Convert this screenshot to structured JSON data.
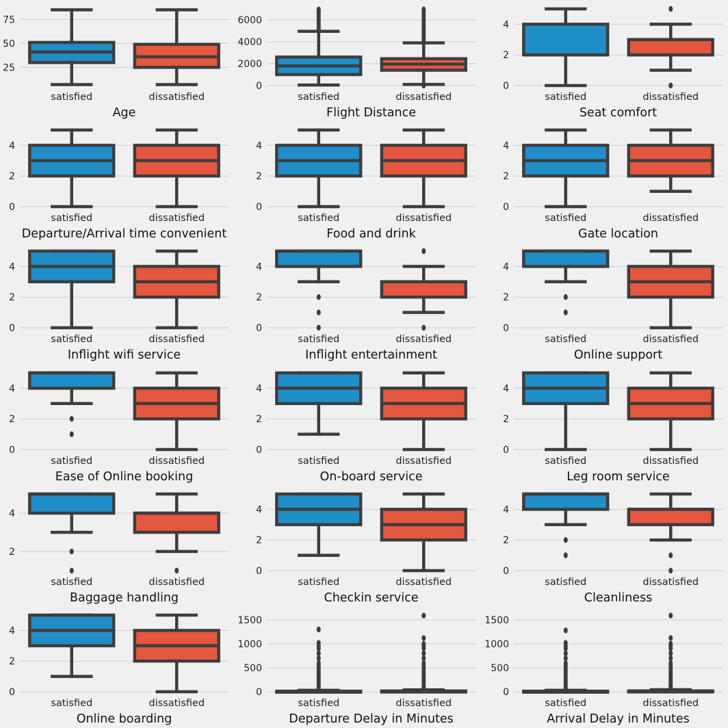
{
  "figure": {
    "background": "#f0f0f0",
    "grid_color": "#cbcbcb",
    "line_color": "#3d3d3d"
  },
  "palette": {
    "satisfied": "#1f8ec9",
    "dissatisfied": "#e5573f"
  },
  "chart_data": [
    {
      "type": "box",
      "xlabel": "Age",
      "categories": [
        "satisfied",
        "dissatisfied"
      ],
      "ylim": [
        6,
        86
      ],
      "yticks": [
        25,
        50,
        75
      ],
      "grid": true,
      "boxes": [
        {
          "name": "satisfied",
          "whisker_low": 7,
          "q1": 30,
          "median": 41,
          "q3": 51,
          "whisker_high": 85,
          "outliers": []
        },
        {
          "name": "dissatisfied",
          "whisker_low": 7,
          "q1": 25,
          "median": 36,
          "q3": 49,
          "whisker_high": 85,
          "outliers": []
        }
      ]
    },
    {
      "type": "box",
      "xlabel": "Flight Distance",
      "categories": [
        "satisfied",
        "dissatisfied"
      ],
      "ylim": [
        0,
        7000
      ],
      "yticks": [
        0,
        2000,
        4000,
        6000
      ],
      "grid": true,
      "boxes": [
        {
          "name": "satisfied",
          "whisker_low": 50,
          "q1": 1000,
          "median": 1800,
          "q3": 2600,
          "whisker_high": 4950,
          "outliers": [
            5100,
            5300,
            5500,
            5700,
            5900,
            6100,
            6300,
            6500,
            6700,
            6850,
            6950
          ]
        },
        {
          "name": "dissatisfied",
          "whisker_low": 100,
          "q1": 1400,
          "median": 1950,
          "q3": 2450,
          "whisker_high": 3900,
          "outliers": [
            0,
            4000,
            4200,
            4400,
            4600,
            4800,
            5000,
            5200,
            5400,
            5600,
            5800,
            6000,
            6200,
            6400,
            6600,
            6800,
            6950
          ]
        }
      ]
    },
    {
      "type": "box",
      "xlabel": "Seat comfort",
      "categories": [
        "satisfied",
        "dissatisfied"
      ],
      "ylim": [
        0,
        5
      ],
      "yticks": [
        0,
        2,
        4
      ],
      "grid": true,
      "boxes": [
        {
          "name": "satisfied",
          "whisker_low": 0,
          "q1": 2,
          "median": 2,
          "q3": 4,
          "whisker_high": 5,
          "outliers": []
        },
        {
          "name": "dissatisfied",
          "whisker_low": 1,
          "q1": 2,
          "median": 2,
          "q3": 3,
          "whisker_high": 4,
          "outliers": [
            0,
            5
          ]
        }
      ]
    },
    {
      "type": "box",
      "xlabel": "Departure/Arrival time convenient",
      "categories": [
        "satisfied",
        "dissatisfied"
      ],
      "ylim": [
        0,
        5
      ],
      "yticks": [
        0,
        2,
        4
      ],
      "grid": true,
      "boxes": [
        {
          "name": "satisfied",
          "whisker_low": 0,
          "q1": 2,
          "median": 3,
          "q3": 4,
          "whisker_high": 5,
          "outliers": []
        },
        {
          "name": "dissatisfied",
          "whisker_low": 0,
          "q1": 2,
          "median": 3,
          "q3": 4,
          "whisker_high": 5,
          "outliers": []
        }
      ]
    },
    {
      "type": "box",
      "xlabel": "Food and drink",
      "categories": [
        "satisfied",
        "dissatisfied"
      ],
      "ylim": [
        0,
        5
      ],
      "yticks": [
        0,
        2,
        4
      ],
      "grid": true,
      "boxes": [
        {
          "name": "satisfied",
          "whisker_low": 0,
          "q1": 2,
          "median": 3,
          "q3": 4,
          "whisker_high": 5,
          "outliers": []
        },
        {
          "name": "dissatisfied",
          "whisker_low": 0,
          "q1": 2,
          "median": 3,
          "q3": 4,
          "whisker_high": 5,
          "outliers": []
        }
      ]
    },
    {
      "type": "box",
      "xlabel": "Gate location",
      "categories": [
        "satisfied",
        "dissatisfied"
      ],
      "ylim": [
        0,
        5
      ],
      "yticks": [
        0,
        2,
        4
      ],
      "grid": true,
      "boxes": [
        {
          "name": "satisfied",
          "whisker_low": 0,
          "q1": 2,
          "median": 3,
          "q3": 4,
          "whisker_high": 5,
          "outliers": []
        },
        {
          "name": "dissatisfied",
          "whisker_low": 1,
          "q1": 2,
          "median": 3,
          "q3": 4,
          "whisker_high": 5,
          "outliers": []
        }
      ]
    },
    {
      "type": "box",
      "xlabel": "Inflight wifi service",
      "categories": [
        "satisfied",
        "dissatisfied"
      ],
      "ylim": [
        0,
        5
      ],
      "yticks": [
        0,
        2,
        4
      ],
      "grid": true,
      "boxes": [
        {
          "name": "satisfied",
          "whisker_low": 0,
          "q1": 3,
          "median": 4,
          "q3": 5,
          "whisker_high": 5,
          "outliers": []
        },
        {
          "name": "dissatisfied",
          "whisker_low": 0,
          "q1": 2,
          "median": 3,
          "q3": 4,
          "whisker_high": 5,
          "outliers": []
        }
      ]
    },
    {
      "type": "box",
      "xlabel": "Inflight entertainment",
      "categories": [
        "satisfied",
        "dissatisfied"
      ],
      "ylim": [
        0,
        5
      ],
      "yticks": [
        0,
        2,
        4
      ],
      "grid": true,
      "boxes": [
        {
          "name": "satisfied",
          "whisker_low": 3,
          "q1": 4,
          "median": 5,
          "q3": 5,
          "whisker_high": 5,
          "outliers": [
            0,
            1,
            2
          ]
        },
        {
          "name": "dissatisfied",
          "whisker_low": 1,
          "q1": 2,
          "median": 3,
          "q3": 3,
          "whisker_high": 4,
          "outliers": [
            0,
            5
          ]
        }
      ]
    },
    {
      "type": "box",
      "xlabel": "Online support",
      "categories": [
        "satisfied",
        "dissatisfied"
      ],
      "ylim": [
        0,
        5
      ],
      "yticks": [
        0,
        2,
        4
      ],
      "grid": true,
      "boxes": [
        {
          "name": "satisfied",
          "whisker_low": 3,
          "q1": 4,
          "median": 5,
          "q3": 5,
          "whisker_high": 5,
          "outliers": [
            1,
            2
          ]
        },
        {
          "name": "dissatisfied",
          "whisker_low": 0,
          "q1": 2,
          "median": 3,
          "q3": 4,
          "whisker_high": 5,
          "outliers": []
        }
      ]
    },
    {
      "type": "box",
      "xlabel": "Ease of Online booking",
      "categories": [
        "satisfied",
        "dissatisfied"
      ],
      "ylim": [
        0,
        5
      ],
      "yticks": [
        0,
        2,
        4
      ],
      "grid": true,
      "boxes": [
        {
          "name": "satisfied",
          "whisker_low": 3,
          "q1": 4,
          "median": 5,
          "q3": 5,
          "whisker_high": 5,
          "outliers": [
            1,
            2
          ]
        },
        {
          "name": "dissatisfied",
          "whisker_low": 0,
          "q1": 2,
          "median": 3,
          "q3": 4,
          "whisker_high": 5,
          "outliers": []
        }
      ]
    },
    {
      "type": "box",
      "xlabel": "On-board service",
      "categories": [
        "satisfied",
        "dissatisfied"
      ],
      "ylim": [
        0,
        5
      ],
      "yticks": [
        0,
        2,
        4
      ],
      "grid": true,
      "boxes": [
        {
          "name": "satisfied",
          "whisker_low": 1,
          "q1": 3,
          "median": 4,
          "q3": 5,
          "whisker_high": 5,
          "outliers": []
        },
        {
          "name": "dissatisfied",
          "whisker_low": 0,
          "q1": 2,
          "median": 3,
          "q3": 4,
          "whisker_high": 5,
          "outliers": []
        }
      ]
    },
    {
      "type": "box",
      "xlabel": "Leg room service",
      "categories": [
        "satisfied",
        "dissatisfied"
      ],
      "ylim": [
        0,
        5
      ],
      "yticks": [
        0,
        2,
        4
      ],
      "grid": true,
      "boxes": [
        {
          "name": "satisfied",
          "whisker_low": 0,
          "q1": 3,
          "median": 4,
          "q3": 5,
          "whisker_high": 5,
          "outliers": []
        },
        {
          "name": "dissatisfied",
          "whisker_low": 0,
          "q1": 2,
          "median": 3,
          "q3": 4,
          "whisker_high": 5,
          "outliers": []
        }
      ]
    },
    {
      "type": "box",
      "xlabel": "Baggage handling",
      "categories": [
        "satisfied",
        "dissatisfied"
      ],
      "ylim": [
        1,
        5
      ],
      "yticks": [
        2,
        4
      ],
      "grid": true,
      "boxes": [
        {
          "name": "satisfied",
          "whisker_low": 3,
          "q1": 4,
          "median": 5,
          "q3": 5,
          "whisker_high": 5,
          "outliers": [
            1,
            2
          ]
        },
        {
          "name": "dissatisfied",
          "whisker_low": 2,
          "q1": 3,
          "median": 4,
          "q3": 4,
          "whisker_high": 5,
          "outliers": [
            1
          ]
        }
      ]
    },
    {
      "type": "box",
      "xlabel": "Checkin service",
      "categories": [
        "satisfied",
        "dissatisfied"
      ],
      "ylim": [
        0,
        5
      ],
      "yticks": [
        0,
        2,
        4
      ],
      "grid": true,
      "boxes": [
        {
          "name": "satisfied",
          "whisker_low": 1,
          "q1": 3,
          "median": 4,
          "q3": 5,
          "whisker_high": 5,
          "outliers": []
        },
        {
          "name": "dissatisfied",
          "whisker_low": 0,
          "q1": 2,
          "median": 3,
          "q3": 4,
          "whisker_high": 5,
          "outliers": []
        }
      ]
    },
    {
      "type": "box",
      "xlabel": "Cleanliness",
      "categories": [
        "satisfied",
        "dissatisfied"
      ],
      "ylim": [
        0,
        5
      ],
      "yticks": [
        0,
        2,
        4
      ],
      "grid": true,
      "boxes": [
        {
          "name": "satisfied",
          "whisker_low": 3,
          "q1": 4,
          "median": 5,
          "q3": 5,
          "whisker_high": 5,
          "outliers": [
            1,
            2
          ]
        },
        {
          "name": "dissatisfied",
          "whisker_low": 2,
          "q1": 3,
          "median": 4,
          "q3": 4,
          "whisker_high": 5,
          "outliers": [
            0,
            1
          ]
        }
      ]
    },
    {
      "type": "box",
      "xlabel": "Online boarding",
      "categories": [
        "satisfied",
        "dissatisfied"
      ],
      "ylim": [
        0,
        5
      ],
      "yticks": [
        0,
        2,
        4
      ],
      "grid": true,
      "boxes": [
        {
          "name": "satisfied",
          "whisker_low": 1,
          "q1": 3,
          "median": 4,
          "q3": 5,
          "whisker_high": 5,
          "outliers": []
        },
        {
          "name": "dissatisfied",
          "whisker_low": 0,
          "q1": 2,
          "median": 3,
          "q3": 4,
          "whisker_high": 5,
          "outliers": []
        }
      ]
    },
    {
      "type": "box",
      "xlabel": "Departure Delay in Minutes",
      "categories": [
        "satisfied",
        "dissatisfied"
      ],
      "ylim": [
        0,
        1600
      ],
      "yticks": [
        0,
        500,
        1000,
        1500
      ],
      "grid": true,
      "boxes": [
        {
          "name": "satisfied",
          "whisker_low": 0,
          "q1": 0,
          "median": 0,
          "q3": 12,
          "whisker_high": 30,
          "outliers": [
            40,
            60,
            80,
            100,
            130,
            160,
            200,
            250,
            300,
            350,
            400,
            450,
            500,
            550,
            600,
            700,
            800,
            900,
            950,
            1020,
            1300
          ]
        },
        {
          "name": "dissatisfied",
          "whisker_low": 0,
          "q1": 0,
          "median": 0,
          "q3": 16,
          "whisker_high": 40,
          "outliers": [
            50,
            70,
            90,
            120,
            150,
            200,
            250,
            300,
            350,
            400,
            450,
            500,
            550,
            600,
            700,
            800,
            900,
            950,
            1000,
            1120,
            1590
          ]
        }
      ]
    },
    {
      "type": "box",
      "xlabel": "Arrival Delay in Minutes",
      "categories": [
        "satisfied",
        "dissatisfied"
      ],
      "ylim": [
        0,
        1600
      ],
      "yticks": [
        0,
        500,
        1000,
        1500
      ],
      "grid": true,
      "boxes": [
        {
          "name": "satisfied",
          "whisker_low": 0,
          "q1": 0,
          "median": 0,
          "q3": 12,
          "whisker_high": 30,
          "outliers": [
            40,
            60,
            80,
            100,
            130,
            160,
            200,
            250,
            300,
            350,
            400,
            450,
            500,
            550,
            600,
            700,
            800,
            900,
            950,
            1020,
            1280
          ]
        },
        {
          "name": "dissatisfied",
          "whisker_low": 0,
          "q1": 0,
          "median": 0,
          "q3": 17,
          "whisker_high": 42,
          "outliers": [
            50,
            70,
            90,
            120,
            150,
            200,
            250,
            300,
            350,
            400,
            450,
            500,
            550,
            600,
            700,
            800,
            900,
            950,
            1000,
            1120,
            1590
          ]
        }
      ]
    }
  ]
}
